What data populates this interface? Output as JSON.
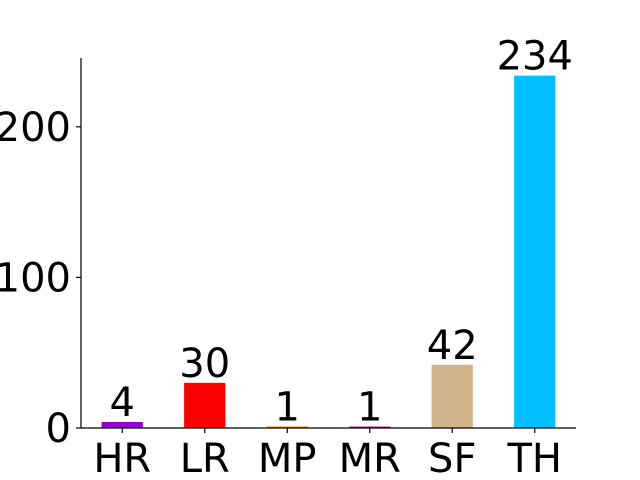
{
  "chart_data": {
    "type": "bar",
    "categories": [
      "HR",
      "LR",
      "MP",
      "MR",
      "SF",
      "TH"
    ],
    "values": [
      4,
      30,
      1,
      1,
      42,
      234
    ],
    "colors": [
      "#9400d3",
      "#ff0000",
      "#ff8c00",
      "#c71585",
      "#d2b48c",
      "#00bfff"
    ],
    "data_labels": [
      "4",
      "30",
      "1",
      "1",
      "42",
      "234"
    ],
    "yticks": [
      0,
      100,
      200
    ],
    "ytick_labels": [
      "0",
      "100",
      "200"
    ],
    "ylim": [
      0,
      245.7
    ],
    "title": "",
    "xlabel": "",
    "ylabel": "",
    "grid": false,
    "legend": "none"
  }
}
